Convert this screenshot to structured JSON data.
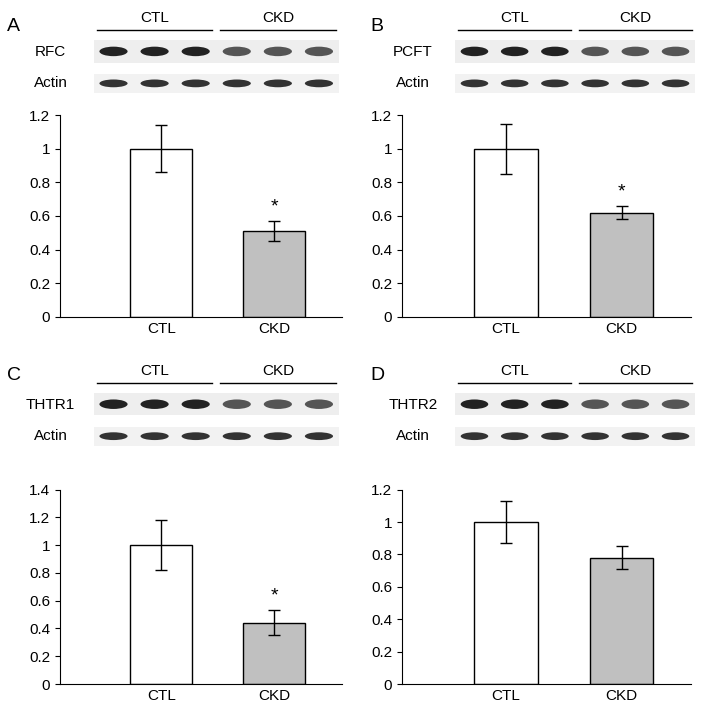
{
  "chart_data": [
    {
      "type": "bar",
      "panel": "A",
      "blot": {
        "target": "RFC",
        "loading_control": "Actin",
        "groups": [
          "CTL",
          "CKD"
        ]
      },
      "categories": [
        "CTL",
        "CKD"
      ],
      "values": [
        1,
        0.51
      ],
      "errors": [
        0.14,
        0.06
      ],
      "colors": [
        "#ffffff",
        "#c0c0c0"
      ],
      "ylim": [
        0,
        1.2
      ],
      "yticks": [
        0,
        0.2,
        0.4,
        0.6,
        0.8,
        1,
        1.2
      ],
      "annotations": [
        {
          "category": "CKD",
          "text": "*"
        }
      ]
    },
    {
      "type": "bar",
      "panel": "B",
      "blot": {
        "target": "PCFT",
        "loading_control": "Actin",
        "groups": [
          "CTL",
          "CKD"
        ]
      },
      "categories": [
        "CTL",
        "CKD"
      ],
      "values": [
        1,
        0.62
      ],
      "errors": [
        0.15,
        0.04
      ],
      "colors": [
        "#ffffff",
        "#c0c0c0"
      ],
      "ylim": [
        0,
        1.2
      ],
      "yticks": [
        0,
        0.2,
        0.4,
        0.6,
        0.8,
        1,
        1.2
      ],
      "annotations": [
        {
          "category": "CKD",
          "text": "*"
        }
      ]
    },
    {
      "type": "bar",
      "panel": "C",
      "blot": {
        "target": "THTR1",
        "loading_control": "Actin",
        "groups": [
          "CTL",
          "CKD"
        ]
      },
      "categories": [
        "CTL",
        "CKD"
      ],
      "values": [
        1,
        0.44
      ],
      "errors": [
        0.18,
        0.09
      ],
      "colors": [
        "#ffffff",
        "#c0c0c0"
      ],
      "ylim": [
        0,
        1.4
      ],
      "yticks": [
        0,
        0.2,
        0.4,
        0.6,
        0.8,
        1,
        1.2,
        1.4
      ],
      "annotations": [
        {
          "category": "CKD",
          "text": "*"
        }
      ]
    },
    {
      "type": "bar",
      "panel": "D",
      "blot": {
        "target": "THTR2",
        "loading_control": "Actin",
        "groups": [
          "CTL",
          "CKD"
        ]
      },
      "categories": [
        "CTL",
        "CKD"
      ],
      "values": [
        1,
        0.78
      ],
      "errors": [
        0.13,
        0.07
      ],
      "colors": [
        "#ffffff",
        "#c0c0c0"
      ],
      "ylim": [
        0,
        1.2
      ],
      "yticks": [
        0,
        0.2,
        0.4,
        0.6,
        0.8,
        1,
        1.2
      ],
      "annotations": []
    }
  ]
}
